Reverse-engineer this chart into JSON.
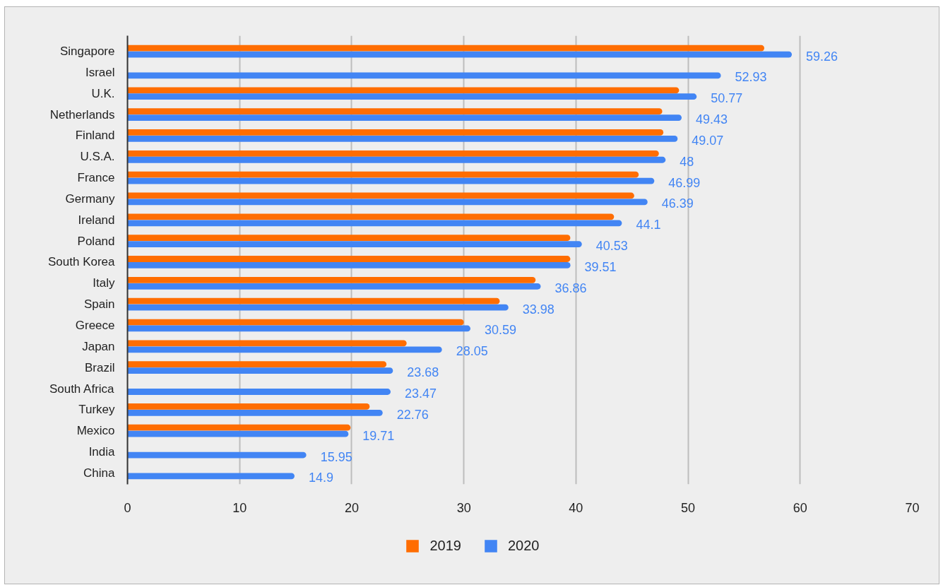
{
  "chart_data": {
    "type": "bar",
    "orientation": "horizontal",
    "categories": [
      "Singapore",
      "Israel",
      "U.K.",
      "Netherlands",
      "Finland",
      "U.S.A.",
      "France",
      "Germany",
      "Ireland",
      "Poland",
      "South Korea",
      "Italy",
      "Spain",
      "Greece",
      "Japan",
      "Brazil",
      "South Africa",
      "Turkey",
      "Mexico",
      "India",
      "China"
    ],
    "series": [
      {
        "name": "2019",
        "color": "#ff6d01",
        "values": [
          56.8,
          null,
          49.2,
          47.7,
          47.8,
          47.4,
          45.6,
          45.2,
          43.4,
          39.5,
          39.5,
          36.4,
          33.2,
          30.0,
          24.9,
          23.1,
          null,
          21.6,
          19.9,
          null,
          null
        ]
      },
      {
        "name": "2020",
        "color": "#4285f4",
        "values": [
          59.26,
          52.93,
          50.77,
          49.43,
          49.07,
          48,
          46.99,
          46.39,
          44.1,
          40.53,
          39.51,
          36.86,
          33.98,
          30.59,
          28.05,
          23.68,
          23.47,
          22.76,
          19.71,
          15.95,
          14.9
        ],
        "value_labels": [
          "59.26",
          "52.93",
          "50.77",
          "49.43",
          "49.07",
          "48",
          "46.99",
          "46.39",
          "44.1",
          "40.53",
          "39.51",
          "36.86",
          "33.98",
          "30.59",
          "28.05",
          "23.68",
          "23.47",
          "22.76",
          "19.71",
          "15.95",
          "14.9"
        ]
      }
    ],
    "xlim": [
      0,
      70
    ],
    "xticks": [
      0,
      10,
      20,
      30,
      40,
      50,
      60,
      70
    ],
    "grid": "x",
    "legend": "bottom"
  }
}
